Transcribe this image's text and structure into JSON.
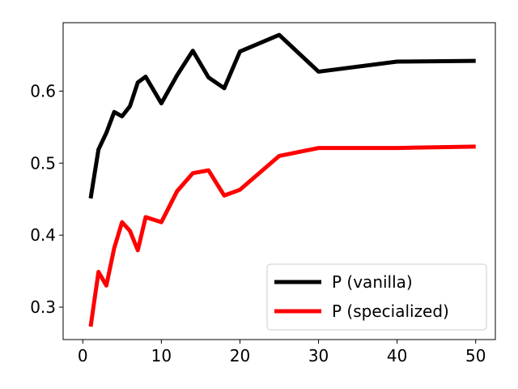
{
  "chart_data": {
    "type": "line",
    "title": "",
    "xlabel": "",
    "ylabel": "",
    "xlim": [
      -2.5,
      52.5
    ],
    "ylim": [
      0.255,
      0.695
    ],
    "xticks": [
      0,
      10,
      20,
      30,
      40,
      50
    ],
    "yticks": [
      0.3,
      0.4,
      0.5,
      0.6
    ],
    "grid": false,
    "legend_position": "lower-right",
    "series": [
      {
        "name": "P (vanilla)",
        "color": "#000000",
        "x": [
          1,
          2,
          3,
          4,
          5,
          6,
          7,
          8,
          10,
          12,
          14,
          16,
          18,
          20,
          25,
          30,
          40,
          50
        ],
        "y": [
          0.451,
          0.519,
          0.542,
          0.571,
          0.565,
          0.579,
          0.612,
          0.62,
          0.583,
          0.622,
          0.656,
          0.619,
          0.604,
          0.655,
          0.678,
          0.627,
          0.641,
          0.642
        ]
      },
      {
        "name": "P (specialized)",
        "color": "#ff0000",
        "x": [
          1,
          2,
          3,
          4,
          5,
          6,
          7,
          8,
          10,
          12,
          14,
          16,
          18,
          20,
          25,
          30,
          40,
          50
        ],
        "y": [
          0.273,
          0.349,
          0.33,
          0.382,
          0.418,
          0.406,
          0.379,
          0.425,
          0.418,
          0.461,
          0.486,
          0.49,
          0.455,
          0.463,
          0.51,
          0.521,
          0.521,
          0.523
        ]
      }
    ]
  }
}
